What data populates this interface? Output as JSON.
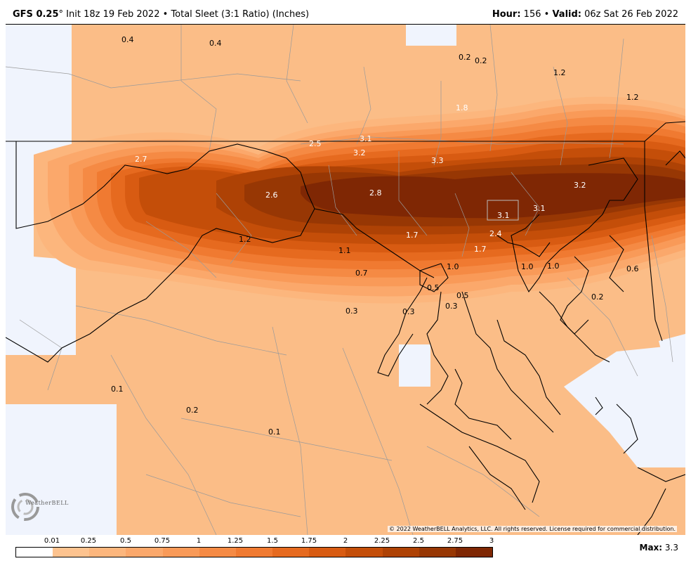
{
  "header": {
    "model": "GFS 0.25",
    "degree_mark": "°",
    "init": "Init 18z 19 Feb 2022",
    "sep": "•",
    "product": "Total Sleet (3:1 Ratio) (Inches)",
    "hour_label": "Hour:",
    "hour_value": "156",
    "valid_label": "Valid:",
    "valid_value": "06z Sat 26 Feb 2022"
  },
  "map": {
    "value_labels": [
      "0.4",
      "0.4",
      "0.2",
      "0.2",
      "1.2",
      "1.8",
      "1.2",
      "2.5",
      "3.1",
      "3.2",
      "3.3",
      "2.7",
      "2.6",
      "2.8",
      "3.1",
      "3.1",
      "3.2",
      "1.2",
      "1.7",
      "2.4",
      "1.7",
      "1.1",
      "0.7",
      "1.0",
      "1.0",
      "1.0",
      "0.6",
      "0.5",
      "0.5",
      "0.3",
      "0.3",
      "0.3",
      "0.2",
      "0.1",
      "0.2",
      "0.1"
    ],
    "colors": {
      "background_low": "#fbbd87",
      "no_data": "#f0f4fd",
      "peak": "#7f2704"
    }
  },
  "copyright": "© 2022 WeatherBELL Analytics, LLC. All rights reserved. License required for commercial distribution.",
  "logo_text": "WeatherBELL",
  "legend": {
    "ticks": [
      "0.01",
      "0.25",
      "0.5",
      "0.75",
      "1",
      "1.25",
      "1.5",
      "1.75",
      "2",
      "2.25",
      "2.5",
      "2.75",
      "3"
    ],
    "colors": [
      "#ffffff",
      "#fdc38f",
      "#fcb67d",
      "#fba86b",
      "#f99a58",
      "#f58a44",
      "#f07a31",
      "#e66a1f",
      "#d85b12",
      "#c44e09",
      "#ae4205",
      "#973704",
      "#7f2704"
    ]
  },
  "max": {
    "label": "Max:",
    "value": "3.3"
  }
}
